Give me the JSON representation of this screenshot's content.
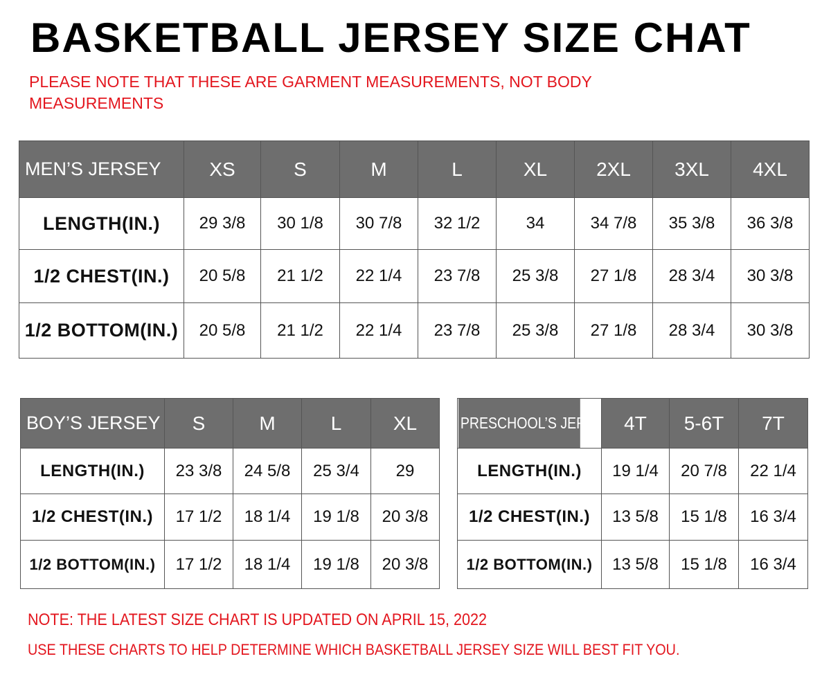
{
  "header": {
    "title": "BASKETBALL JERSEY SIZE CHAT",
    "note": "PLEASE NOTE THAT THESE ARE GARMENT MEASUREMENTS, NOT BODY MEASUREMENTS"
  },
  "tables": [
    {
      "header": [
        "MEN’S JERSEY",
        "XS",
        "S",
        "M",
        "L",
        "XL",
        "2XL",
        "3XL",
        "4XL"
      ],
      "rows": [
        [
          "LENGTH(IN.)",
          "29 3/8",
          "30 1/8",
          "30 7/8",
          "32 1/2",
          "34",
          "34 7/8",
          "35 3/8",
          "36 3/8"
        ],
        [
          "1/2 CHEST(IN.)",
          "20 5/8",
          "21 1/2",
          "22 1/4",
          "23 7/8",
          "25 3/8",
          "27 1/8",
          "28 3/4",
          "30 3/8"
        ],
        [
          "1/2 BOTTOM(IN.)",
          "20 5/8",
          "21 1/2",
          "22 1/4",
          "23 7/8",
          "25 3/8",
          "27 1/8",
          "28 3/4",
          "30 3/8"
        ]
      ]
    },
    {
      "header": [
        "BOY’S JERSEY",
        "S",
        "M",
        "L",
        "XL"
      ],
      "rows": [
        [
          "LENGTH(IN.)",
          "23 3/8",
          "24 5/8",
          "25 3/4",
          "29"
        ],
        [
          "1/2 CHEST(IN.)",
          "17 1/2",
          "18 1/4",
          "19 1/8",
          "20 3/8"
        ],
        [
          "1/2 BOTTOM(IN.)",
          "17 1/2",
          "18 1/4",
          "19 1/8",
          "20 3/8"
        ]
      ]
    },
    {
      "header": [
        "PRESCHOOL’S JERSEY",
        "4T",
        "5-6T",
        "7T"
      ],
      "rows": [
        [
          "LENGTH(IN.)",
          "19 1/4",
          "20 7/8",
          "22 1/4"
        ],
        [
          "1/2 CHEST(IN.)",
          "13 5/8",
          "15 1/8",
          "16 3/4"
        ],
        [
          "1/2 BOTTOM(IN.)",
          "13 5/8",
          "15 1/8",
          "16 3/4"
        ]
      ]
    }
  ],
  "footer": {
    "notes": [
      "NOTE: THE LATEST SIZE CHART IS UPDATED ON APRIL 15, 2022",
      "USE THESE CHARTS TO HELP DETERMINE WHICH  BASKETBALL JERSEY  SIZE WILL BEST FIT YOU."
    ]
  }
}
